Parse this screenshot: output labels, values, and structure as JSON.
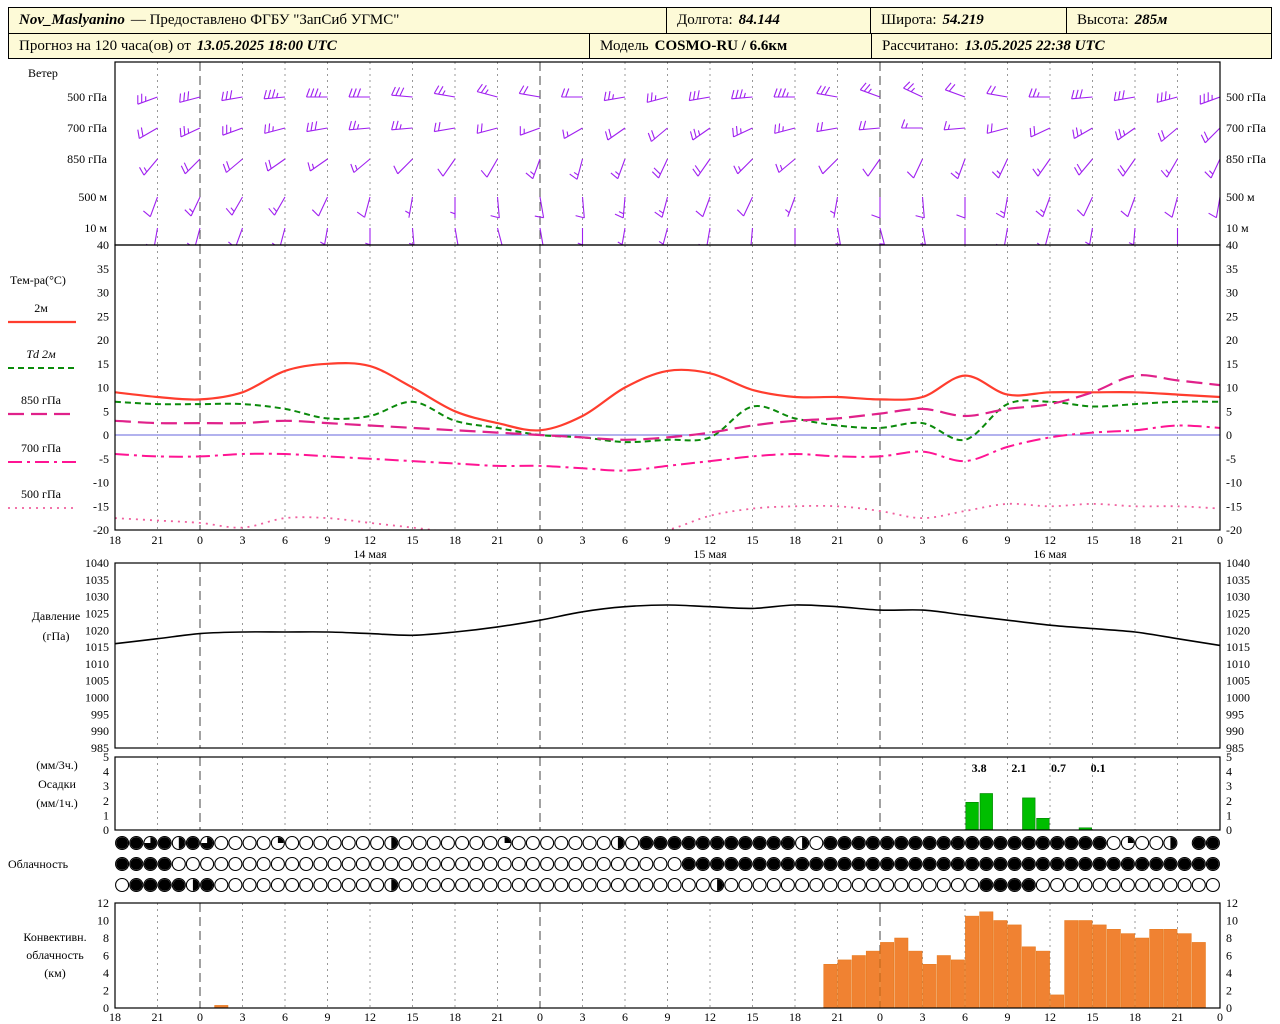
{
  "header": {
    "station": "Nov_Maslyanino",
    "provider": "— Предоставлено ФГБУ \"ЗапСиб УГМС\"",
    "fields": [
      {
        "label": "Долгота:",
        "value": "84.144"
      },
      {
        "label": "Широта:",
        "value": "54.219"
      },
      {
        "label": "Высота:",
        "value": "285м"
      }
    ],
    "row2": [
      {
        "label": "Прогноз на 120 часа(ов) от",
        "value": "13.05.2025 18:00 UTC"
      },
      {
        "label": "Модель",
        "value": "COSMO-RU / 6.6км"
      },
      {
        "label": "Рассчитано:",
        "value": "13.05.2025 22:38 UTC"
      }
    ]
  },
  "colors": {
    "header_bg": "#FDFAD7",
    "wind_barb": "#A020F0",
    "t2m": "#FF3D2E",
    "td2m": "#0B8A0B",
    "t850": "#E0218A",
    "t700": "#FF1493",
    "t500": "#F0609F",
    "zero_line": "#6666DD",
    "pressure": "#000000",
    "precip_bar": "#00BE00",
    "precip_bar_edge": "#008000",
    "convective_bar": "#F08232",
    "convective_bar_edge": "#E57616",
    "grid": "#999999",
    "grid_day": "#444444",
    "border": "#000000"
  },
  "chart_data": {
    "type": "meteogram",
    "time_axis": {
      "step_hours": 3,
      "tick_labels": [
        "18",
        "21",
        "0",
        "3",
        "6",
        "9",
        "12",
        "15",
        "18",
        "21",
        "0",
        "3",
        "6",
        "9",
        "12",
        "15",
        "18",
        "21",
        "0",
        "3",
        "6",
        "9",
        "12",
        "15",
        "18",
        "21",
        "0"
      ],
      "date_labels": [
        {
          "tick": 6,
          "label": "14 мая"
        },
        {
          "tick": 14,
          "label": "15 мая"
        },
        {
          "tick": 22,
          "label": "16 мая"
        }
      ]
    },
    "wind": {
      "type": "wind-barbs",
      "title": "Ветер",
      "levels": [
        {
          "label": "500 гПа",
          "dirs": [
            245,
            250,
            255,
            260,
            265,
            270,
            270,
            275,
            280,
            285,
            280,
            270,
            260,
            255,
            260,
            265,
            270,
            280,
            290,
            295,
            290,
            280,
            270,
            265,
            260,
            255,
            250
          ],
          "speeds": [
            25,
            25,
            30,
            30,
            35,
            35,
            30,
            30,
            25,
            25,
            20,
            20,
            25,
            25,
            30,
            35,
            35,
            30,
            25,
            25,
            20,
            20,
            25,
            30,
            30,
            35,
            35
          ]
        },
        {
          "label": "700 гПа",
          "dirs": [
            235,
            240,
            245,
            250,
            255,
            260,
            265,
            265,
            260,
            255,
            250,
            240,
            235,
            230,
            235,
            245,
            255,
            260,
            265,
            270,
            265,
            255,
            245,
            240,
            235,
            230,
            225
          ],
          "speeds": [
            20,
            20,
            25,
            25,
            25,
            30,
            25,
            25,
            20,
            20,
            15,
            15,
            20,
            20,
            25,
            25,
            25,
            20,
            20,
            15,
            15,
            20,
            20,
            25,
            25,
            20,
            20
          ]
        },
        {
          "label": "850 гПа",
          "dirs": [
            215,
            220,
            225,
            230,
            235,
            235,
            230,
            225,
            215,
            210,
            200,
            195,
            200,
            205,
            215,
            225,
            230,
            225,
            215,
            205,
            200,
            205,
            215,
            220,
            215,
            210,
            205
          ],
          "speeds": [
            15,
            15,
            20,
            20,
            20,
            15,
            15,
            10,
            10,
            10,
            15,
            15,
            15,
            20,
            20,
            15,
            15,
            10,
            10,
            10,
            15,
            15,
            15,
            20,
            20,
            15,
            15
          ]
        },
        {
          "label": "500 м",
          "dirs": [
            195,
            200,
            205,
            210,
            210,
            205,
            195,
            190,
            180,
            175,
            170,
            175,
            185,
            195,
            200,
            205,
            200,
            190,
            180,
            175,
            180,
            190,
            200,
            205,
            200,
            195,
            190
          ],
          "speeds": [
            10,
            10,
            15,
            15,
            15,
            10,
            10,
            5,
            5,
            10,
            10,
            10,
            15,
            15,
            10,
            10,
            5,
            5,
            10,
            10,
            10,
            15,
            15,
            10,
            10,
            10,
            10
          ]
        },
        {
          "label": "10 м",
          "dirs": [
            185,
            190,
            195,
            200,
            195,
            190,
            180,
            175,
            170,
            165,
            170,
            180,
            190,
            195,
            190,
            185,
            180,
            170,
            165,
            170,
            180,
            190,
            195,
            190,
            185,
            180,
            175
          ],
          "speeds": [
            5,
            10,
            10,
            10,
            10,
            5,
            5,
            5,
            10,
            10,
            10,
            5,
            5,
            5,
            10,
            10,
            10,
            5,
            5,
            5,
            10,
            10,
            10,
            5,
            5,
            10,
            10
          ]
        }
      ]
    },
    "temperature": {
      "type": "line",
      "title": "Тем-ра(°C)",
      "ylim": [
        -20,
        40
      ],
      "y_ticks": [
        40,
        35,
        30,
        25,
        20,
        15,
        10,
        5,
        0,
        -5,
        -10,
        -15,
        -20
      ],
      "series": [
        {
          "id": "t2m",
          "label": "2м",
          "values": [
            9,
            8,
            7.5,
            9,
            13.5,
            15,
            14.5,
            10,
            5,
            2.5,
            1,
            4,
            10,
            13.5,
            13,
            9.5,
            8,
            8,
            7.5,
            8,
            12.5,
            8.5,
            9,
            9,
            9,
            8.5,
            8
          ]
        },
        {
          "id": "td2m",
          "label": "Td 2м",
          "values": [
            7,
            6.5,
            6.5,
            6.5,
            5.5,
            3.5,
            4,
            7,
            3,
            1.5,
            0,
            -0.5,
            -1.5,
            -1,
            -0.5,
            6,
            3.5,
            2,
            1.5,
            2.5,
            -1,
            6.5,
            7,
            6,
            6.5,
            7,
            7
          ]
        },
        {
          "id": "t850",
          "label": "850 гПа",
          "values": [
            3,
            2.5,
            2.5,
            2.5,
            3,
            2.5,
            2,
            1.5,
            1,
            0.5,
            0,
            -0.5,
            -1,
            -0.5,
            0.5,
            2,
            3,
            3.5,
            4.5,
            5.5,
            4,
            5.5,
            6.5,
            9,
            12.5,
            11.5,
            10.5
          ]
        },
        {
          "id": "t700",
          "label": "700 гПа",
          "values": [
            -4,
            -4.5,
            -4.5,
            -4,
            -4,
            -4.5,
            -5,
            -5.5,
            -6,
            -6.5,
            -6.5,
            -7,
            -7.5,
            -6.5,
            -5.5,
            -4.5,
            -4,
            -4.5,
            -4.5,
            -3.5,
            -5.5,
            -2.5,
            -0.5,
            0.5,
            1,
            2,
            1.5
          ]
        },
        {
          "id": "t500",
          "label": "500 гПа",
          "values": [
            -17.5,
            -18,
            -18.5,
            -19.5,
            -17.5,
            -17.5,
            -18.5,
            -19.5,
            -20.5,
            -21,
            -21,
            -21,
            -21,
            -20,
            -17,
            -15.5,
            -15,
            -15,
            -16,
            -17.5,
            -16,
            -14.5,
            -15,
            -14.5,
            -15,
            -15,
            -15.5
          ]
        }
      ]
    },
    "pressure": {
      "type": "line",
      "title_lines": [
        "Давление",
        "(гПа)"
      ],
      "ylim": [
        985,
        1040
      ],
      "y_ticks": [
        1040,
        1035,
        1030,
        1025,
        1020,
        1015,
        1010,
        1005,
        1000,
        995,
        990,
        985
      ],
      "values": [
        1016,
        1017.5,
        1019,
        1019.5,
        1019.5,
        1019.5,
        1019,
        1018.5,
        1019.5,
        1021,
        1023,
        1025.5,
        1027,
        1027.5,
        1027,
        1026.5,
        1027.5,
        1027,
        1026,
        1026,
        1024.5,
        1023,
        1021.5,
        1020.5,
        1019.5,
        1017.5,
        1015.5
      ]
    },
    "precipitation": {
      "type": "bar",
      "title_lines": [
        "(мм/3ч.)",
        "Осадки",
        "(мм/1ч.)"
      ],
      "ylim": [
        0,
        5
      ],
      "y_ticks": [
        5,
        4,
        3,
        2,
        1,
        0
      ],
      "bars": [
        {
          "hour": 60,
          "value": 1.9
        },
        {
          "hour": 61,
          "value": 2.5
        },
        {
          "hour": 64,
          "value": 2.2
        },
        {
          "hour": 65,
          "value": 0.8
        },
        {
          "hour": 68,
          "value": 0.15
        }
      ],
      "amount_labels": [
        {
          "hour": 61,
          "text": "3.8"
        },
        {
          "hour": 63.8,
          "text": "2.1"
        },
        {
          "hour": 66.6,
          "text": "0.7"
        },
        {
          "hour": 69.4,
          "text": "0.1"
        }
      ]
    },
    "cloudiness": {
      "type": "symbols",
      "title": "Облачность",
      "rows": [
        "886848600002000000040000000200000004088888888888408888888888888888888802004 8888",
        "888800000000000000000000000000000000000088888888888888888888888888888888888888",
        "088884800000000000040000000000000000000000400000000000000000088880000000000000"
      ]
    },
    "convective": {
      "type": "bar",
      "title_lines": [
        "Конвективн.",
        "облачность",
        "(км)"
      ],
      "ylim": [
        0,
        12
      ],
      "y_ticks": [
        12,
        10,
        8,
        6,
        4,
        2,
        0
      ],
      "values": [
        0,
        0,
        0,
        0,
        0,
        0,
        0,
        0.3,
        0,
        0,
        0,
        0,
        0,
        0,
        0,
        0,
        0,
        0,
        0,
        0,
        0,
        0,
        0,
        0,
        0,
        0,
        0,
        0,
        0,
        0,
        0,
        0,
        0,
        0,
        0,
        0,
        0,
        0,
        0,
        0,
        0,
        0,
        0,
        0,
        0,
        0,
        0,
        0,
        0,
        0,
        5,
        5.5,
        6,
        6.5,
        7.5,
        8,
        6.5,
        5,
        6,
        5.5,
        10.5,
        11,
        10,
        9.5,
        7,
        6.5,
        1.5,
        10,
        10,
        9.5,
        9,
        8.5,
        8,
        9,
        9,
        8.5,
        7.5,
        0
      ]
    }
  }
}
